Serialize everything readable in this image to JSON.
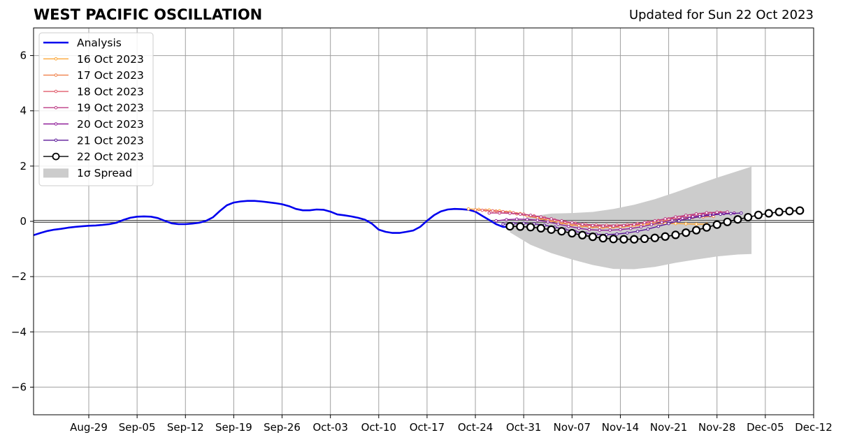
{
  "chart_data": {
    "type": "line",
    "title": "WEST PACIFIC OSCILLATION",
    "subtitle": "Updated for Sun 22 Oct 2023",
    "xlabel": "",
    "ylabel": "",
    "x_axis": {
      "type": "date",
      "range": [
        "2023-08-21",
        "2023-12-12"
      ],
      "tick_dates": [
        "2023-08-29",
        "2023-09-05",
        "2023-09-12",
        "2023-09-19",
        "2023-09-26",
        "2023-10-03",
        "2023-10-10",
        "2023-10-17",
        "2023-10-24",
        "2023-10-31",
        "2023-11-07",
        "2023-11-14",
        "2023-11-21",
        "2023-11-28",
        "2023-12-05",
        "2023-12-12"
      ],
      "tick_labels": [
        "Aug-29",
        "Sep-05",
        "Sep-12",
        "Sep-19",
        "Sep-26",
        "Oct-03",
        "Oct-10",
        "Oct-17",
        "Oct-24",
        "Oct-31",
        "Nov-07",
        "Nov-14",
        "Nov-21",
        "Nov-28",
        "Dec-05",
        "Dec-12"
      ]
    },
    "y_axis": {
      "range": [
        -7,
        7
      ],
      "ticks": [
        -6,
        -4,
        -2,
        0,
        2,
        4,
        6
      ],
      "tick_labels": [
        "−6",
        "−4",
        "−2",
        "0",
        "2",
        "4",
        "6"
      ]
    },
    "grid": true,
    "legend_position": "top-left",
    "legend": [
      "Analysis",
      "16 Oct 2023",
      "17 Oct 2023",
      "18 Oct 2023",
      "19 Oct 2023",
      "20 Oct 2023",
      "21 Oct 2023",
      "22 Oct 2023",
      "1σ Spread"
    ],
    "analysis": {
      "name": "Analysis",
      "color": "#0000ee",
      "points": [
        [
          "2023-08-21",
          -0.5
        ],
        [
          "2023-08-22",
          -0.42
        ],
        [
          "2023-08-23",
          -0.35
        ],
        [
          "2023-08-24",
          -0.3
        ],
        [
          "2023-08-25",
          -0.27
        ],
        [
          "2023-08-26",
          -0.23
        ],
        [
          "2023-08-27",
          -0.2
        ],
        [
          "2023-08-28",
          -0.18
        ],
        [
          "2023-08-29",
          -0.16
        ],
        [
          "2023-08-30",
          -0.15
        ],
        [
          "2023-08-31",
          -0.13
        ],
        [
          "2023-09-01",
          -0.1
        ],
        [
          "2023-09-02",
          -0.05
        ],
        [
          "2023-09-03",
          0.05
        ],
        [
          "2023-09-04",
          0.13
        ],
        [
          "2023-09-05",
          0.17
        ],
        [
          "2023-09-06",
          0.18
        ],
        [
          "2023-09-07",
          0.17
        ],
        [
          "2023-09-08",
          0.12
        ],
        [
          "2023-09-09",
          0.02
        ],
        [
          "2023-09-10",
          -0.07
        ],
        [
          "2023-09-11",
          -0.1
        ],
        [
          "2023-09-12",
          -0.1
        ],
        [
          "2023-09-13",
          -0.08
        ],
        [
          "2023-09-14",
          -0.05
        ],
        [
          "2023-09-15",
          0.02
        ],
        [
          "2023-09-16",
          0.15
        ],
        [
          "2023-09-17",
          0.38
        ],
        [
          "2023-09-18",
          0.58
        ],
        [
          "2023-09-19",
          0.68
        ],
        [
          "2023-09-20",
          0.72
        ],
        [
          "2023-09-21",
          0.74
        ],
        [
          "2023-09-22",
          0.74
        ],
        [
          "2023-09-23",
          0.72
        ],
        [
          "2023-09-24",
          0.69
        ],
        [
          "2023-09-25",
          0.66
        ],
        [
          "2023-09-26",
          0.62
        ],
        [
          "2023-09-27",
          0.55
        ],
        [
          "2023-09-28",
          0.45
        ],
        [
          "2023-09-29",
          0.4
        ],
        [
          "2023-09-30",
          0.4
        ],
        [
          "2023-10-01",
          0.43
        ],
        [
          "2023-10-02",
          0.42
        ],
        [
          "2023-10-03",
          0.35
        ],
        [
          "2023-10-04",
          0.25
        ],
        [
          "2023-10-05",
          0.22
        ],
        [
          "2023-10-06",
          0.18
        ],
        [
          "2023-10-07",
          0.13
        ],
        [
          "2023-10-08",
          0.06
        ],
        [
          "2023-10-09",
          -0.08
        ],
        [
          "2023-10-10",
          -0.3
        ],
        [
          "2023-10-11",
          -0.38
        ],
        [
          "2023-10-12",
          -0.42
        ],
        [
          "2023-10-13",
          -0.42
        ],
        [
          "2023-10-14",
          -0.38
        ],
        [
          "2023-10-15",
          -0.33
        ],
        [
          "2023-10-16",
          -0.2
        ],
        [
          "2023-10-17",
          0.02
        ],
        [
          "2023-10-18",
          0.22
        ],
        [
          "2023-10-19",
          0.36
        ],
        [
          "2023-10-20",
          0.43
        ],
        [
          "2023-10-21",
          0.45
        ],
        [
          "2023-10-22",
          0.44
        ],
        [
          "2023-10-23",
          0.42
        ],
        [
          "2023-10-24",
          0.35
        ],
        [
          "2023-10-25",
          0.2
        ],
        [
          "2023-10-26",
          0.05
        ],
        [
          "2023-10-27",
          -0.1
        ],
        [
          "2023-10-28",
          -0.2
        ],
        [
          "2023-10-29",
          -0.2
        ]
      ]
    },
    "spread": {
      "name": "1σ Spread",
      "color": "#cccccc",
      "points": [
        [
          "2023-10-29",
          -0.15,
          -0.4
        ],
        [
          "2023-11-01",
          0.18,
          -0.85
        ],
        [
          "2023-11-04",
          0.28,
          -1.15
        ],
        [
          "2023-11-07",
          0.3,
          -1.38
        ],
        [
          "2023-11-10",
          0.34,
          -1.58
        ],
        [
          "2023-11-13",
          0.45,
          -1.72
        ],
        [
          "2023-11-16",
          0.6,
          -1.73
        ],
        [
          "2023-11-19",
          0.8,
          -1.65
        ],
        [
          "2023-11-22",
          1.05,
          -1.5
        ],
        [
          "2023-11-25",
          1.32,
          -1.38
        ],
        [
          "2023-11-28",
          1.58,
          -1.27
        ],
        [
          "2023-12-01",
          1.82,
          -1.2
        ],
        [
          "2023-12-03",
          1.98,
          -1.18
        ]
      ]
    },
    "forecasts": [
      {
        "name": "16 Oct 2023",
        "color": "#fca636",
        "start": "2023-10-23",
        "step_days": 1.5,
        "values": [
          0.45,
          0.43,
          0.41,
          0.38,
          0.34,
          0.28,
          0.2,
          0.11,
          0.02,
          -0.06,
          -0.12,
          -0.17,
          -0.2,
          -0.22,
          -0.21,
          -0.19,
          -0.16,
          -0.12,
          -0.09,
          -0.08,
          -0.08,
          -0.09,
          -0.1,
          -0.1
        ]
      },
      {
        "name": "17 Oct 2023",
        "color": "#f0804a",
        "start": "2023-10-24",
        "step_days": 1.5,
        "values": [
          0.42,
          0.4,
          0.37,
          0.33,
          0.27,
          0.2,
          0.12,
          0.04,
          -0.04,
          -0.11,
          -0.16,
          -0.2,
          -0.22,
          -0.22,
          -0.2,
          -0.16,
          -0.11,
          -0.05,
          0.01,
          0.06,
          0.1,
          0.14,
          0.16,
          0.18
        ]
      },
      {
        "name": "18 Oct 2023",
        "color": "#e05c6c",
        "start": "2023-10-25",
        "step_days": 1.5,
        "values": [
          0.4,
          0.38,
          0.35,
          0.31,
          0.26,
          0.2,
          0.13,
          0.05,
          -0.02,
          -0.07,
          -0.11,
          -0.13,
          -0.14,
          -0.14,
          -0.12,
          -0.08,
          -0.03,
          0.03,
          0.09,
          0.15,
          0.2,
          0.25,
          0.29,
          0.32
        ]
      },
      {
        "name": "19 Oct 2023",
        "color": "#bc3b85",
        "start": "2023-10-26",
        "step_days": 1.5,
        "values": [
          0.3,
          0.3,
          0.29,
          0.26,
          0.22,
          0.16,
          0.09,
          0.02,
          -0.05,
          -0.11,
          -0.15,
          -0.17,
          -0.17,
          -0.15,
          -0.11,
          -0.05,
          0.02,
          0.09,
          0.16,
          0.22,
          0.27,
          0.31,
          0.33,
          0.34
        ]
      },
      {
        "name": "20 Oct 2023",
        "color": "#8f1f99",
        "start": "2023-10-27",
        "step_days": 1.5,
        "values": [
          0.02,
          0.06,
          0.08,
          0.07,
          0.04,
          -0.02,
          -0.1,
          -0.18,
          -0.25,
          -0.3,
          -0.32,
          -0.32,
          -0.3,
          -0.26,
          -0.2,
          -0.12,
          -0.04,
          0.04,
          0.11,
          0.17,
          0.22,
          0.26,
          0.28,
          0.3
        ]
      },
      {
        "name": "21 Oct 2023",
        "color": "#5c1a99",
        "start": "2023-10-28",
        "step_days": 1.5,
        "values": [
          -0.1,
          -0.08,
          -0.07,
          -0.09,
          -0.14,
          -0.21,
          -0.29,
          -0.37,
          -0.43,
          -0.47,
          -0.48,
          -0.46,
          -0.42,
          -0.36,
          -0.28,
          -0.18,
          -0.08,
          0.02,
          0.1,
          0.17,
          0.22,
          0.26,
          0.28,
          0.3
        ]
      },
      {
        "name": "22 Oct 2023",
        "color": "#000000",
        "start": "2023-10-29",
        "step_days": 1.5,
        "values": [
          -0.18,
          -0.19,
          -0.21,
          -0.25,
          -0.3,
          -0.36,
          -0.43,
          -0.5,
          -0.56,
          -0.61,
          -0.64,
          -0.65,
          -0.65,
          -0.63,
          -0.6,
          -0.55,
          -0.49,
          -0.41,
          -0.32,
          -0.22,
          -0.12,
          -0.02,
          0.07,
          0.15,
          0.23,
          0.29,
          0.34,
          0.37,
          0.39
        ]
      }
    ]
  }
}
